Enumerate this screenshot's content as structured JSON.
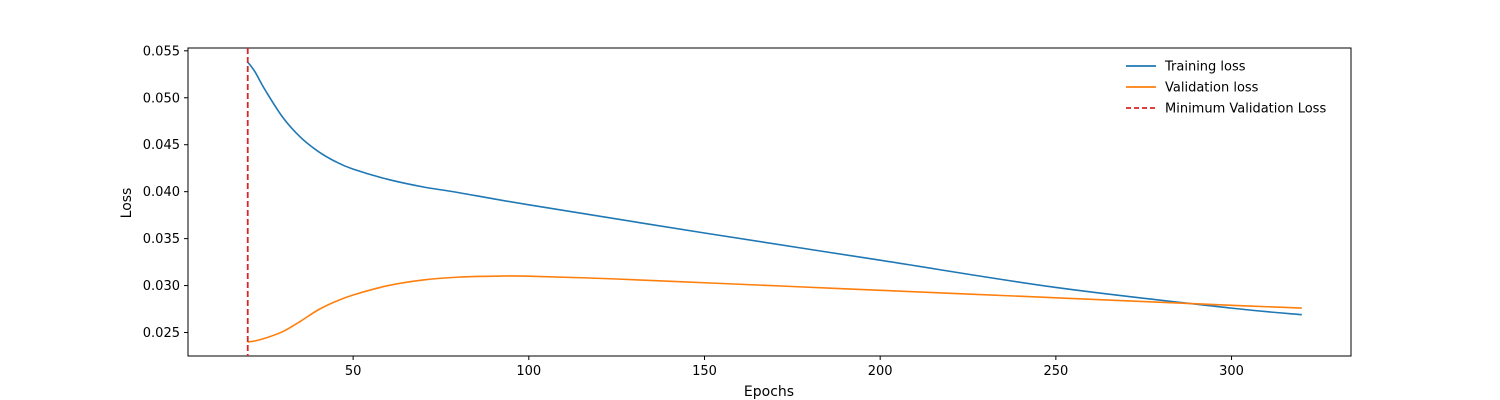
{
  "chart_data": {
    "type": "line",
    "title": "",
    "xlabel": "Epochs",
    "ylabel": "Loss",
    "xlim": [
      3,
      334
    ],
    "ylim": [
      0.0225,
      0.0553
    ],
    "xticks": [
      50,
      100,
      150,
      200,
      250,
      300
    ],
    "yticks": [
      0.025,
      0.03,
      0.035,
      0.04,
      0.045,
      0.05,
      0.055
    ],
    "xtick_labels": [
      "50",
      "100",
      "150",
      "200",
      "250",
      "300"
    ],
    "ytick_labels": [
      "0.025",
      "0.030",
      "0.035",
      "0.040",
      "0.045",
      "0.050",
      "0.055"
    ],
    "grid": false,
    "legend_position": "top-right",
    "series": [
      {
        "name": "Training loss",
        "color": "#1f77b4",
        "style": "solid",
        "x": [
          20,
          22,
          25,
          30,
          35,
          40,
          45,
          50,
          60,
          70,
          80,
          100,
          150,
          200,
          250,
          300,
          320
        ],
        "y": [
          0.0538,
          0.0528,
          0.0508,
          0.0479,
          0.0458,
          0.0443,
          0.0432,
          0.0424,
          0.0413,
          0.0405,
          0.0399,
          0.0386,
          0.0356,
          0.0327,
          0.0298,
          0.0276,
          0.0269
        ]
      },
      {
        "name": "Validation loss",
        "color": "#ff7f0e",
        "style": "solid",
        "x": [
          20,
          22,
          25,
          30,
          35,
          40,
          45,
          50,
          60,
          70,
          80,
          90,
          100,
          125,
          150,
          175,
          200,
          225,
          250,
          275,
          300,
          320
        ],
        "y": [
          0.024,
          0.0241,
          0.0244,
          0.0251,
          0.0262,
          0.0274,
          0.0283,
          0.029,
          0.03,
          0.0306,
          0.0309,
          0.031,
          0.031,
          0.0307,
          0.0303,
          0.0299,
          0.0295,
          0.0291,
          0.0287,
          0.0283,
          0.0279,
          0.0276
        ]
      }
    ],
    "vlines": [
      {
        "name": "Minimum Validation Loss",
        "x": 20,
        "color": "#d62728",
        "style": "dashed"
      }
    ]
  }
}
